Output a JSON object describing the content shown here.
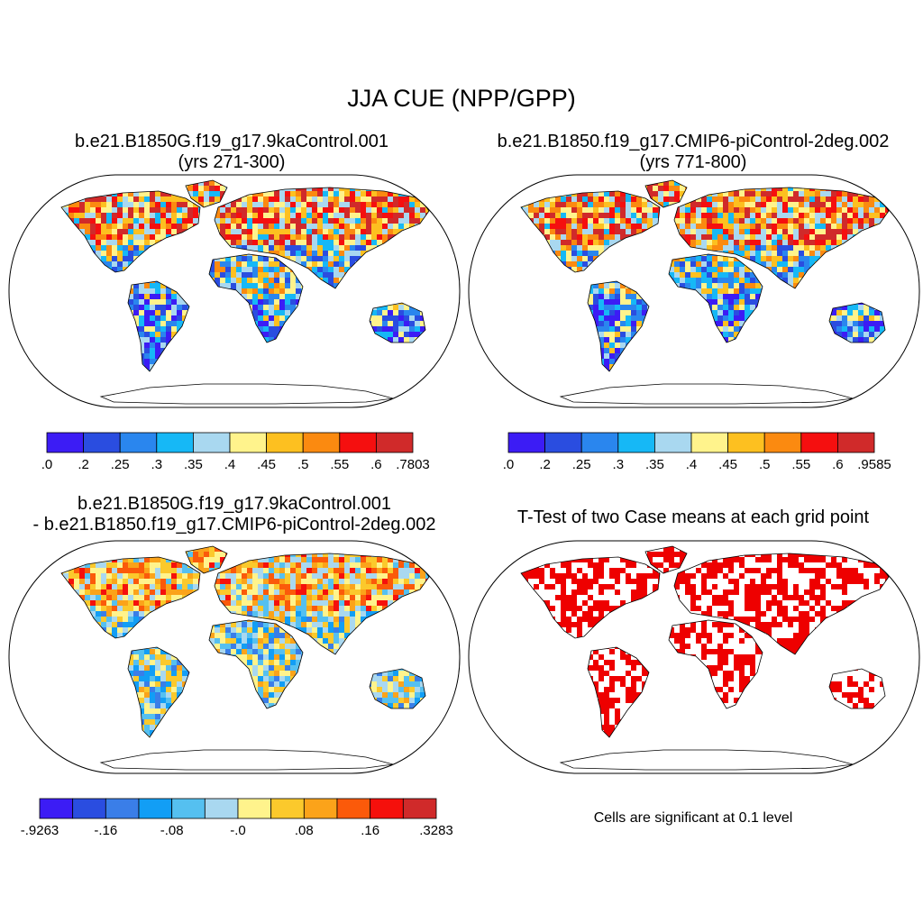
{
  "figure": {
    "title": "JJA CUE (NPP/GPP)"
  },
  "panels": [
    {
      "title_line1": "b.e21.B1850G.f19_g17.9kaControl.001",
      "title_line2": "(yrs 271-300)",
      "colorbar": {
        "labels": [
          ".0",
          ".2",
          ".25",
          ".3",
          ".35",
          ".4",
          ".45",
          ".5",
          ".55",
          ".6",
          ".7803"
        ],
        "colors": [
          "#3c1cf5",
          "#2a4de0",
          "#2a86ee",
          "#16b8f6",
          "#a9d8f0",
          "#fff38c",
          "#fdc020",
          "#fb8a10",
          "#f50f0f",
          "#d02a2a"
        ]
      }
    },
    {
      "title_line1": "b.e21.B1850.f19_g17.CMIP6-piControl-2deg.002",
      "title_line2": "(yrs 771-800)",
      "colorbar": {
        "labels": [
          ".0",
          ".2",
          ".25",
          ".3",
          ".35",
          ".4",
          ".45",
          ".5",
          ".55",
          ".6",
          ".9585"
        ],
        "colors": [
          "#3c1cf5",
          "#2a4de0",
          "#2a86ee",
          "#16b8f6",
          "#a9d8f0",
          "#fff38c",
          "#fdc020",
          "#fb8a10",
          "#f50f0f",
          "#d02a2a"
        ]
      }
    },
    {
      "title_line1": "b.e21.B1850G.f19_g17.9kaControl.001",
      "title_line2": "- b.e21.B1850.f19_g17.CMIP6-piControl-2deg.002",
      "colorbar": {
        "labels": [
          "-.9263",
          "-.16",
          "-.08",
          "-.0",
          ".08",
          ".16",
          ".3283"
        ],
        "label_positions": [
          0,
          2,
          4,
          6,
          8,
          10,
          12
        ],
        "colors": [
          "#3c1cf5",
          "#2a4de0",
          "#3a7ee8",
          "#129ef5",
          "#55c0f0",
          "#a9d8f0",
          "#fff38c",
          "#fbc92c",
          "#fba31a",
          "#fb5a0a",
          "#f5100c",
          "#d02a2a"
        ]
      }
    },
    {
      "title_line1": "T-Test of two Case means at each grid point",
      "note": "Cells are significant at 0.1 level",
      "significant_color": "#ee0000"
    }
  ]
}
